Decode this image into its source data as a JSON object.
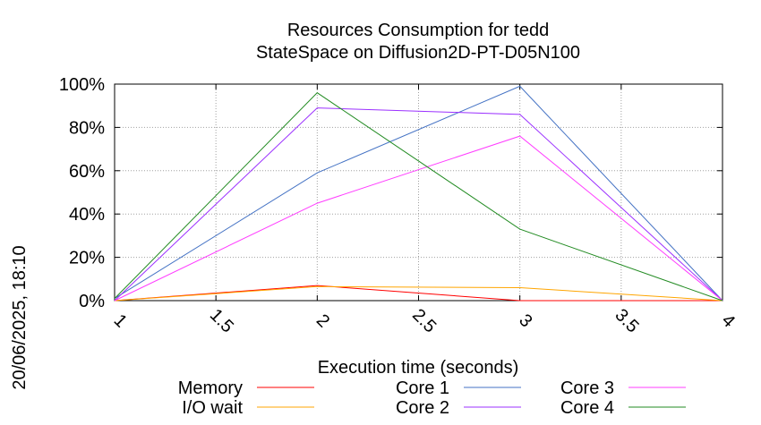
{
  "chart_data": {
    "type": "line",
    "title": "Resources Consumption for tedd",
    "subtitle": "StateSpace on Diffusion2D-PT-D05N100",
    "timestamp": "20/06/2025, 18:10",
    "xlabel": "Execution time (seconds)",
    "ylabel": "",
    "x": [
      1,
      2,
      3,
      4
    ],
    "x_ticks": [
      "1",
      "1.5",
      "2",
      "2.5",
      "3",
      "3.5",
      "4"
    ],
    "y_ticks": [
      "0%",
      "20%",
      "40%",
      "60%",
      "80%",
      "100%"
    ],
    "xlim": [
      1,
      4
    ],
    "ylim": [
      0,
      100
    ],
    "grid": true,
    "legend_position": "bottom",
    "series": [
      {
        "name": "Memory",
        "color": "#ff0000",
        "values": [
          0,
          7,
          0,
          0
        ]
      },
      {
        "name": "I/O wait",
        "color": "#ffa500",
        "values": [
          0,
          6.5,
          6,
          0
        ]
      },
      {
        "name": "Core 1",
        "color": "#4472c4",
        "values": [
          1,
          59,
          99,
          0
        ]
      },
      {
        "name": "Core 2",
        "color": "#9b30ff",
        "values": [
          0,
          89,
          86,
          0
        ]
      },
      {
        "name": "Core 3",
        "color": "#ff3cff",
        "values": [
          0,
          45,
          76,
          0
        ]
      },
      {
        "name": "Core 4",
        "color": "#228b22",
        "values": [
          1,
          96,
          33,
          0
        ]
      }
    ]
  }
}
